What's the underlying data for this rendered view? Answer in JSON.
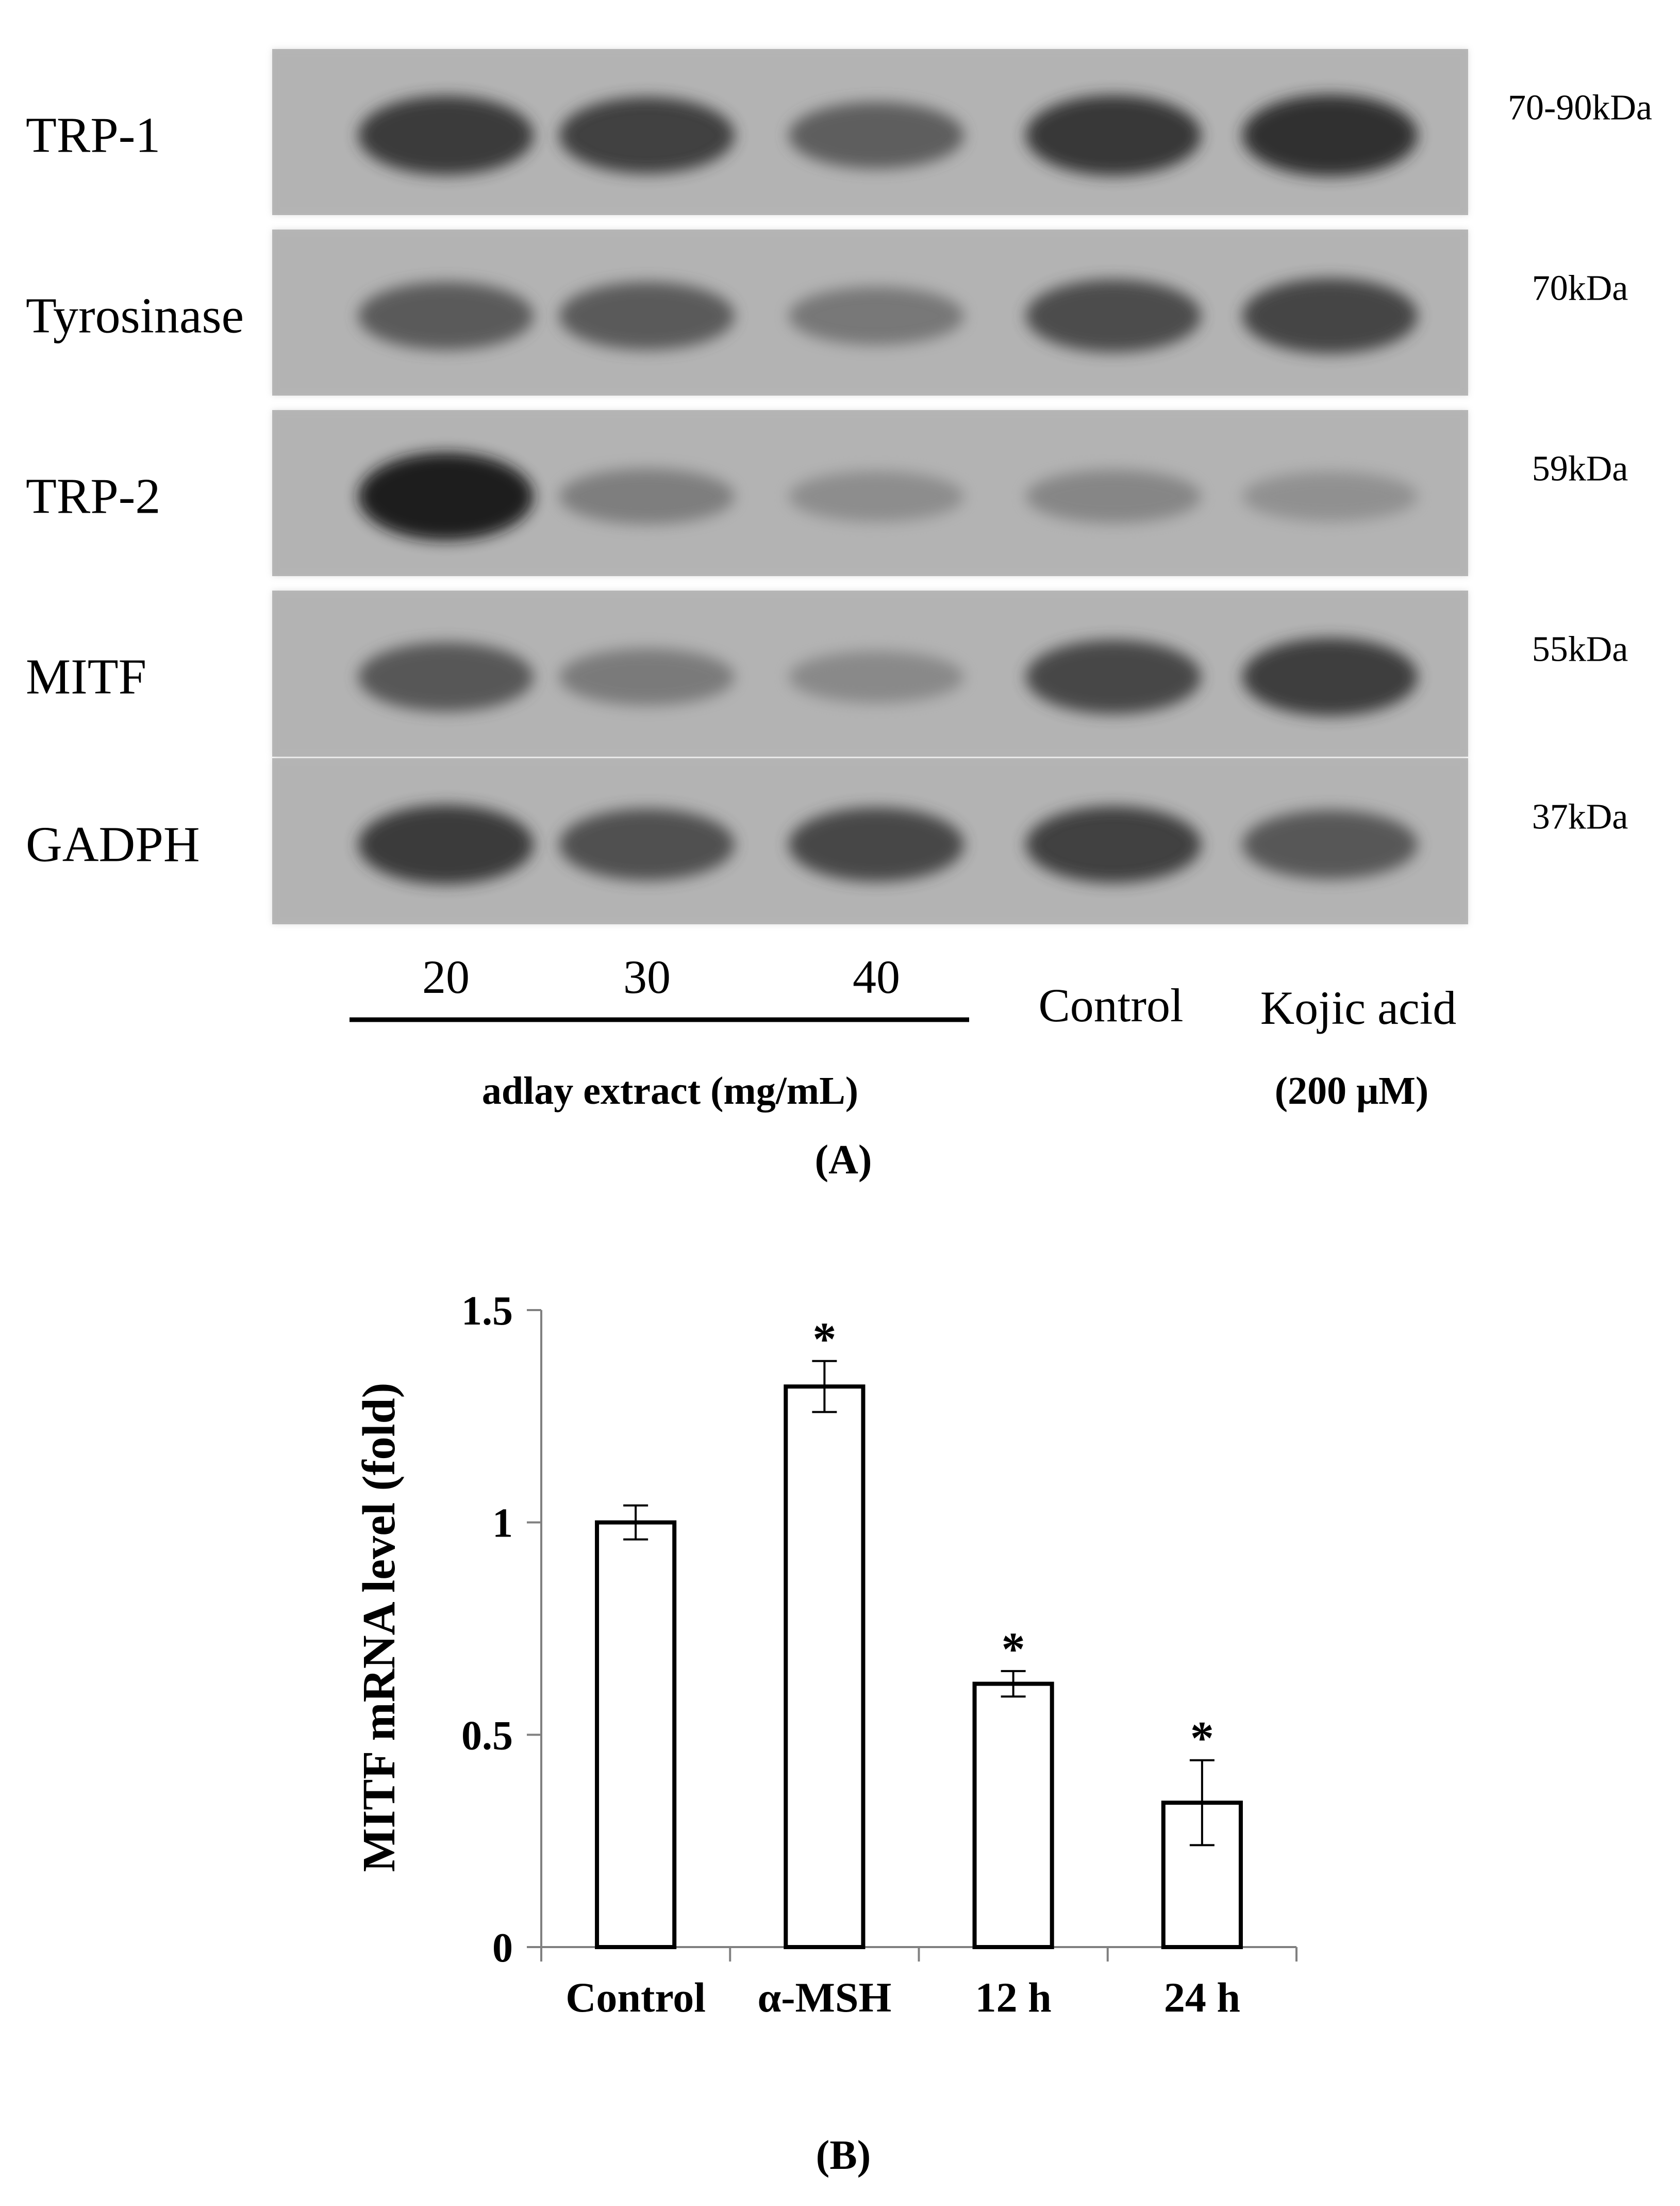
{
  "panel_a": {
    "proteins": [
      {
        "name": "TRP-1",
        "size": "70-90kDa",
        "band_levels": [
          0.78,
          0.74,
          0.58,
          0.8,
          0.82
        ]
      },
      {
        "name": "Tyrosinase",
        "size": "70kDa",
        "band_levels": [
          0.6,
          0.6,
          0.44,
          0.68,
          0.72
        ]
      },
      {
        "name": "TRP-2",
        "size": "59kDa",
        "band_levels": [
          0.92,
          0.4,
          0.32,
          0.36,
          0.3
        ]
      },
      {
        "name": "MITF",
        "size": "55kDa",
        "band_levels": [
          0.62,
          0.42,
          0.34,
          0.7,
          0.76
        ]
      },
      {
        "name": "GADPH",
        "size": "37kDa",
        "band_levels": [
          0.78,
          0.66,
          0.7,
          0.74,
          0.62
        ]
      }
    ],
    "lanes": [
      "20",
      "30",
      "40",
      "Control",
      "Kojic acid"
    ],
    "group_label": "adlay extract (mg/mL)",
    "kojic_conc": "(200 μM)",
    "panel_label": "(A)"
  },
  "panel_b": {
    "panel_label": "(B)"
  },
  "chart_data": {
    "type": "bar",
    "categories": [
      "Control",
      "α-MSH",
      "12 h",
      "24 h"
    ],
    "values": [
      1.0,
      1.32,
      0.62,
      0.34
    ],
    "errors": [
      0.04,
      0.06,
      0.03,
      0.1
    ],
    "significance": [
      "",
      "*",
      "*",
      "*"
    ],
    "ylabel": "MITF mRNA level (fold)",
    "ylim": [
      0,
      1.5
    ],
    "yticks": [
      "0",
      "0.5",
      "1",
      "1.5"
    ],
    "grid": false,
    "bar_fill": "#ffffff",
    "bar_stroke": "#000000"
  }
}
